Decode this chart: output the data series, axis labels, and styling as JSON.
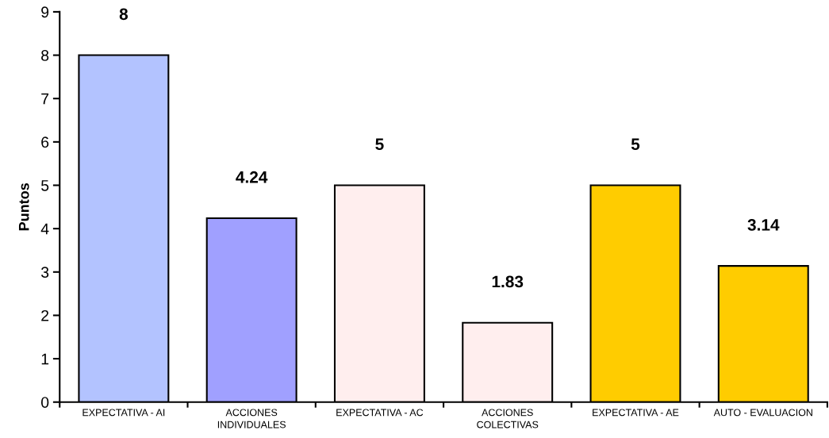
{
  "chart_data": {
    "type": "bar",
    "ylabel": "Puntos",
    "categories": [
      "EXPECTATIVA - AI",
      "ACCIONES\nINDIVIDUALES",
      "EXPECTATIVA - AC",
      "ACCIONES\nCOLECTIVAS",
      "EXPECTATIVA - AE",
      "AUTO - EVALUACION"
    ],
    "values": [
      8,
      4.24,
      5,
      1.83,
      5,
      3.14
    ],
    "colors": [
      "#b3c3ff",
      "#a0a0ff",
      "#ffeeee",
      "#ffeeee",
      "#ffcc00",
      "#ffcc00"
    ],
    "ylim": [
      0,
      9
    ],
    "yticks": [
      0,
      1,
      2,
      3,
      4,
      5,
      6,
      7,
      8,
      9
    ],
    "data_labels": true,
    "grid": false,
    "legend": false
  }
}
